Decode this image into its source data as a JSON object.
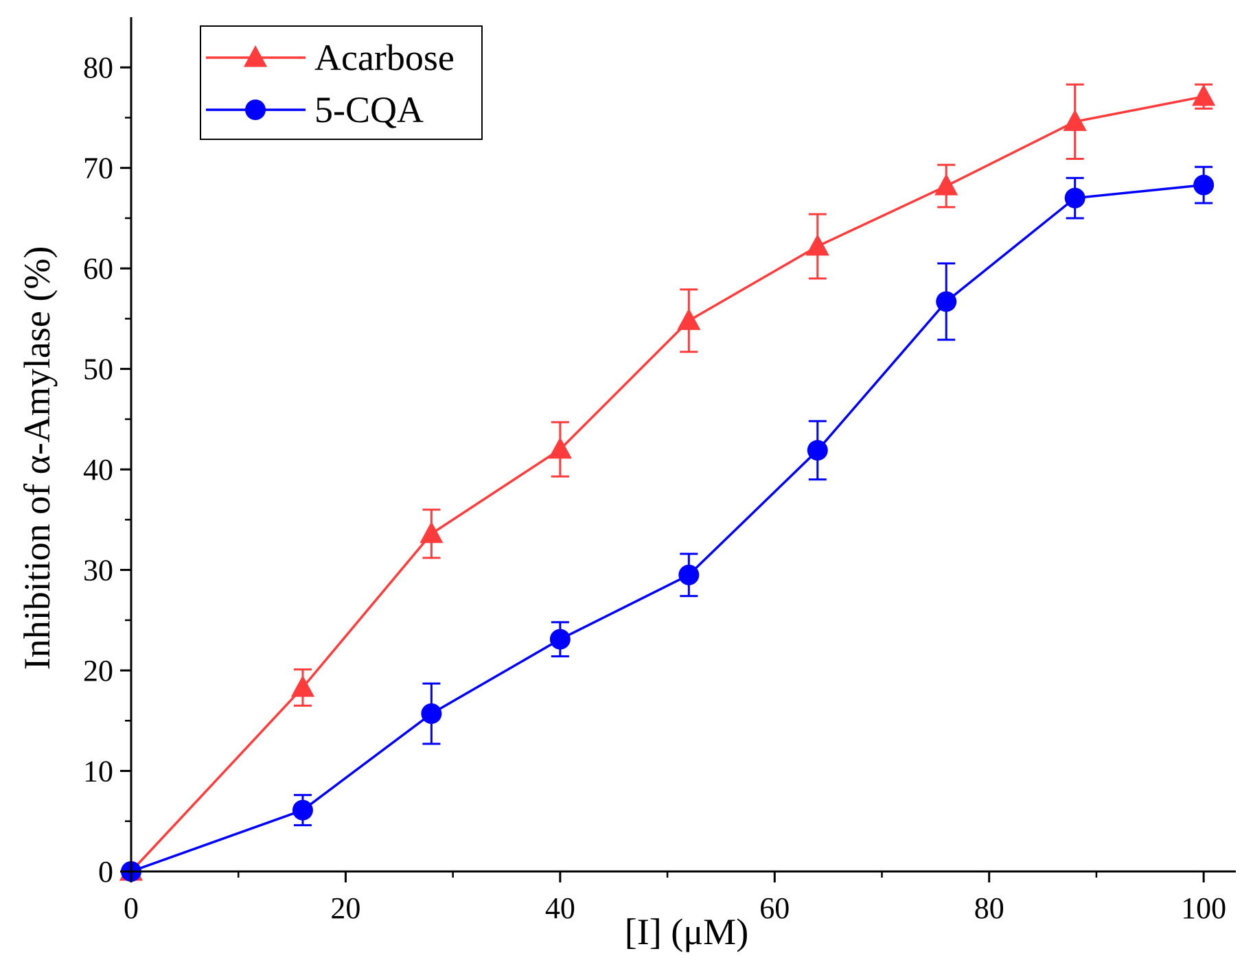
{
  "chart_data": {
    "type": "line",
    "title": "",
    "xlabel": "[I] (μM)",
    "ylabel": "Inhibition of α-Amylase (%)",
    "xlim": [
      0,
      103
    ],
    "ylim": [
      0,
      85
    ],
    "x_ticks": [
      0,
      20,
      40,
      60,
      80,
      100
    ],
    "x_minor_ticks": [
      10,
      30,
      50,
      70,
      90
    ],
    "y_ticks": [
      0,
      10,
      20,
      30,
      40,
      50,
      60,
      70,
      80
    ],
    "y_minor_ticks": [
      5,
      15,
      25,
      35,
      45,
      55,
      65,
      75
    ],
    "x_tick_labels": [
      "0",
      "20",
      "40",
      "60",
      "80",
      "100"
    ],
    "y_tick_labels": [
      "0",
      "10",
      "20",
      "30",
      "40",
      "50",
      "60",
      "70",
      "80"
    ],
    "grid": false,
    "legend_position": "top-left",
    "series": [
      {
        "name": "Acarbose",
        "color": "#ff3b3b",
        "marker": "triangle",
        "x": [
          0,
          16,
          28,
          40,
          52,
          64,
          76,
          88,
          100
        ],
        "y": [
          0,
          18.3,
          33.6,
          42.0,
          54.8,
          62.2,
          68.2,
          74.6,
          77.1
        ],
        "error": [
          0,
          1.8,
          2.4,
          2.7,
          3.1,
          3.2,
          2.1,
          3.7,
          1.2
        ]
      },
      {
        "name": "5-CQA",
        "color": "#0000ff",
        "marker": "circle",
        "x": [
          0,
          16,
          28,
          40,
          52,
          64,
          76,
          88,
          100
        ],
        "y": [
          0,
          6.1,
          15.7,
          23.1,
          29.5,
          41.9,
          56.7,
          67.0,
          68.3
        ],
        "error": [
          0,
          1.5,
          3.0,
          1.7,
          2.1,
          2.9,
          3.8,
          2.0,
          1.8
        ]
      }
    ]
  }
}
